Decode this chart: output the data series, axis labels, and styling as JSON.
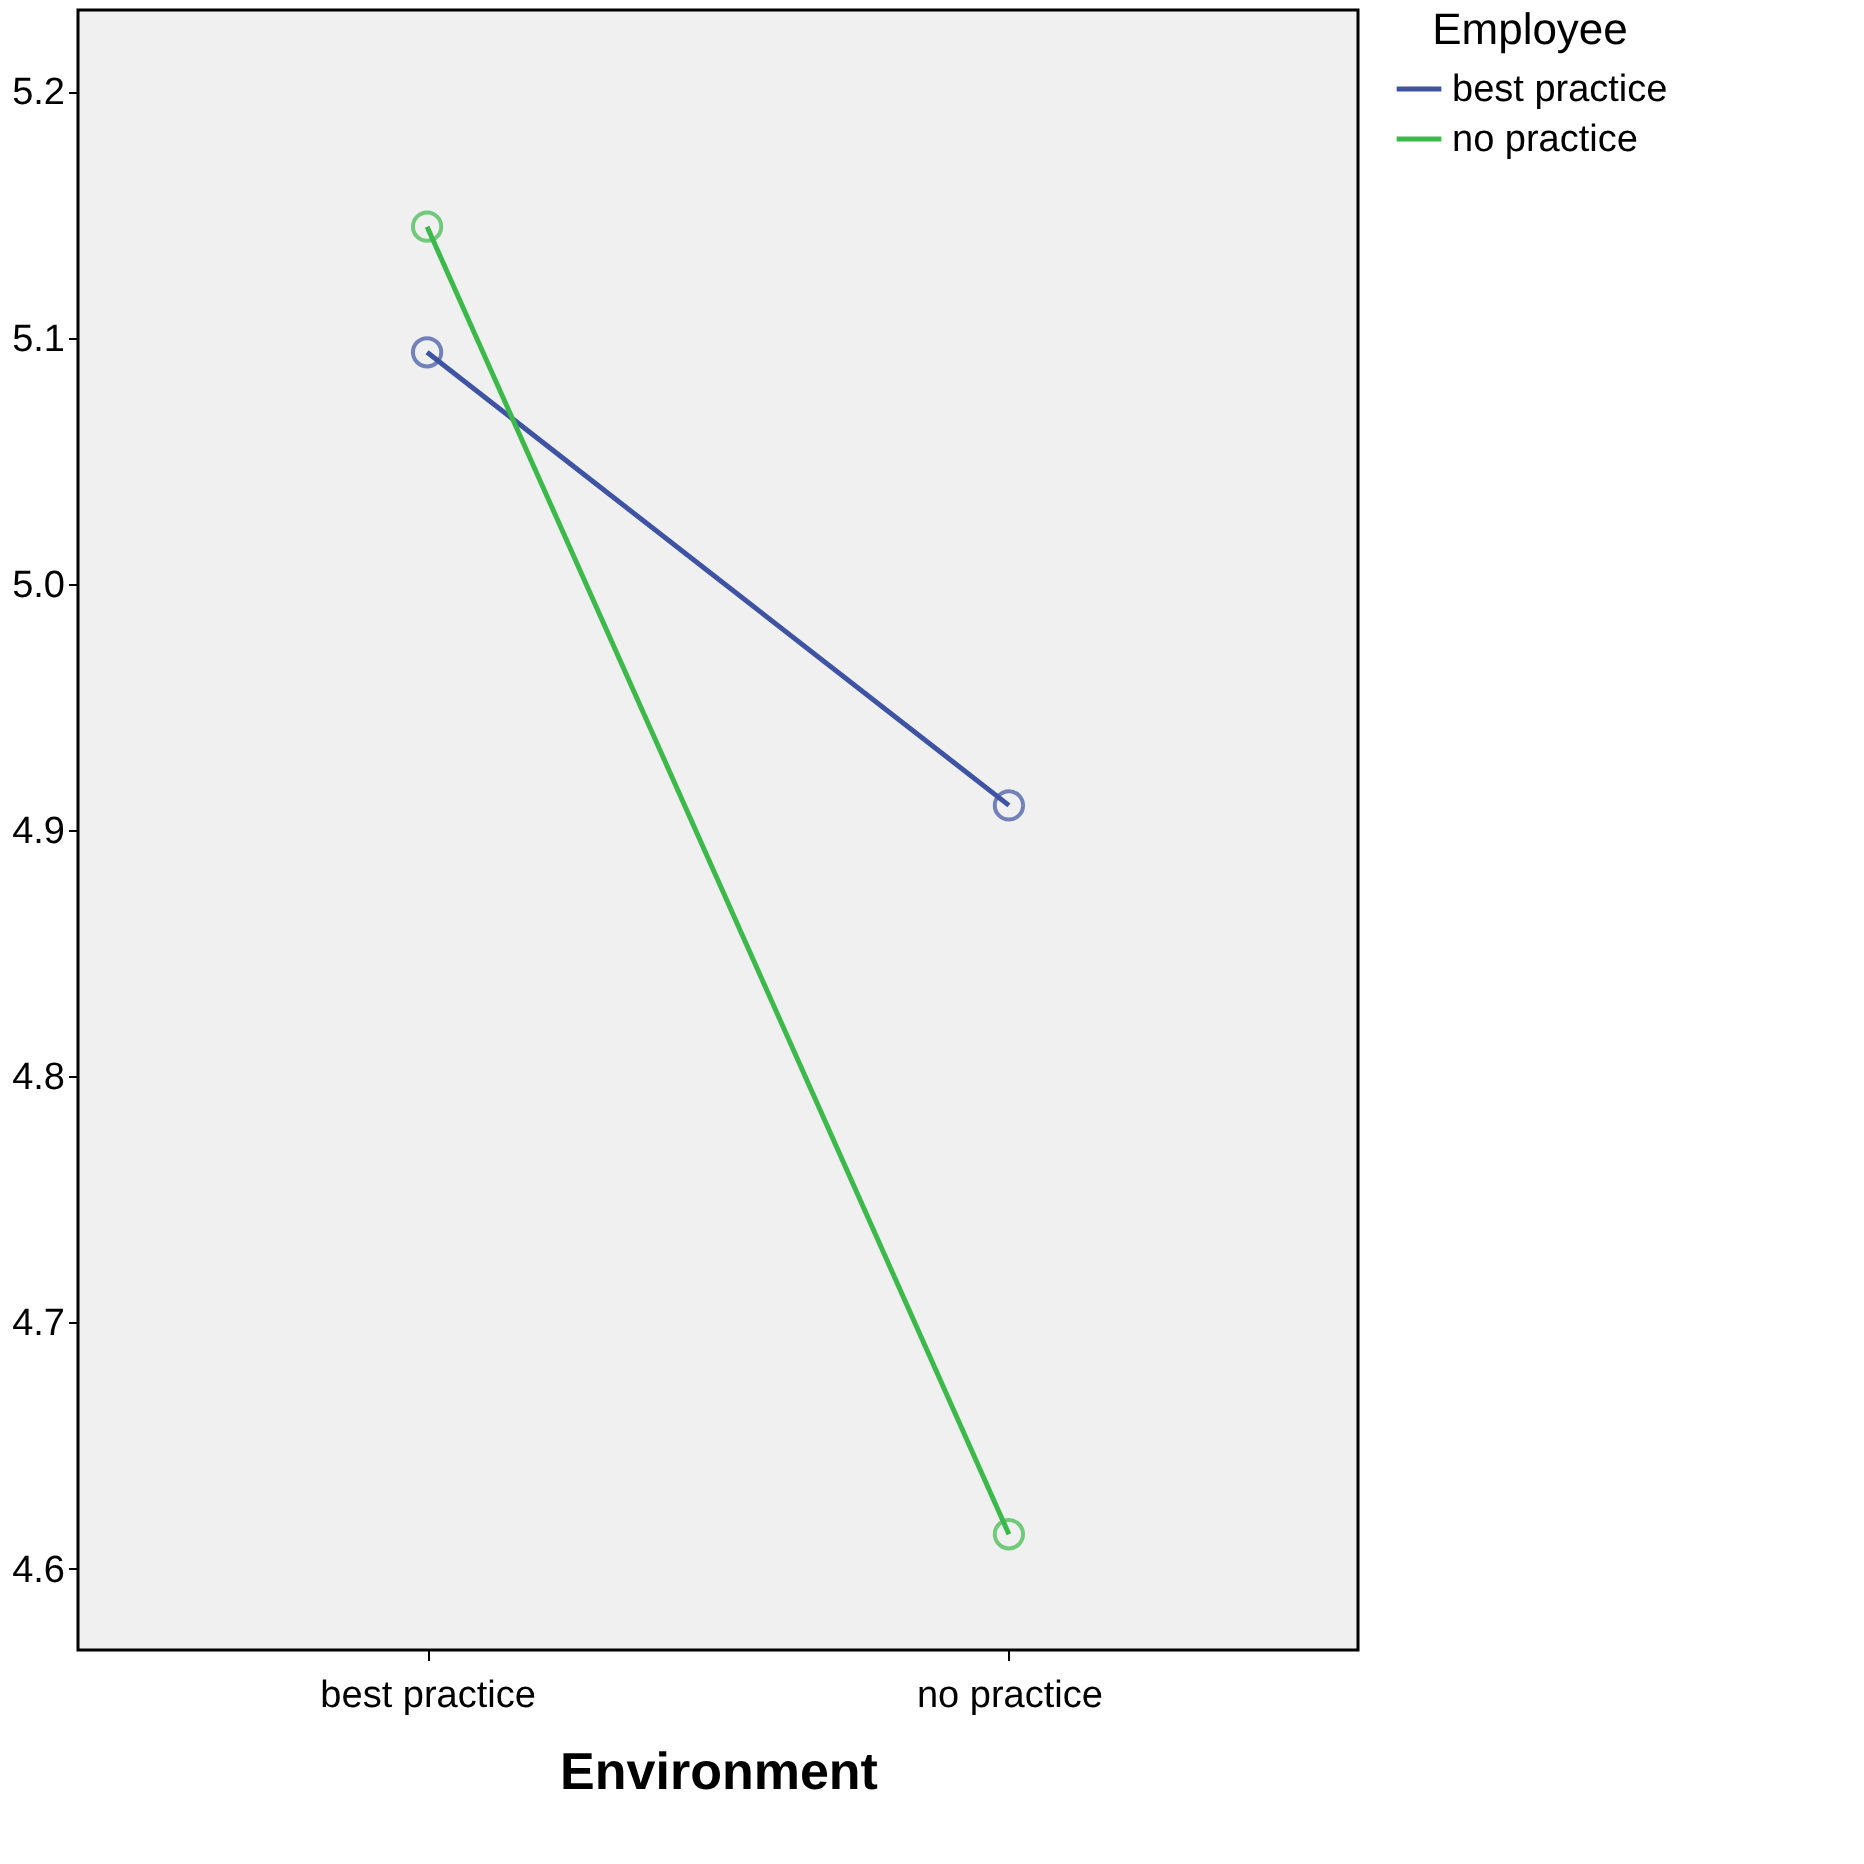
{
  "chart_data": {
    "type": "line",
    "xlabel": "Environment",
    "legend_title": "Employee",
    "categories": [
      "best practice",
      "no practice"
    ],
    "series": [
      {
        "name": "best practice",
        "color": "#3e54a3",
        "values": [
          5.094,
          4.91
        ]
      },
      {
        "name": "no practice",
        "color": "#3cb94a",
        "values": [
          5.145,
          4.614
        ]
      }
    ],
    "ylim": [
      4.567,
      5.233
    ],
    "yticks": [
      4.6,
      4.7,
      4.8,
      4.9,
      {
        "value": 5,
        "label": "5.0"
      },
      5.1,
      5.2
    ],
    "marker": "circle",
    "line_style": "solid",
    "grid": false,
    "legend": "top right"
  }
}
